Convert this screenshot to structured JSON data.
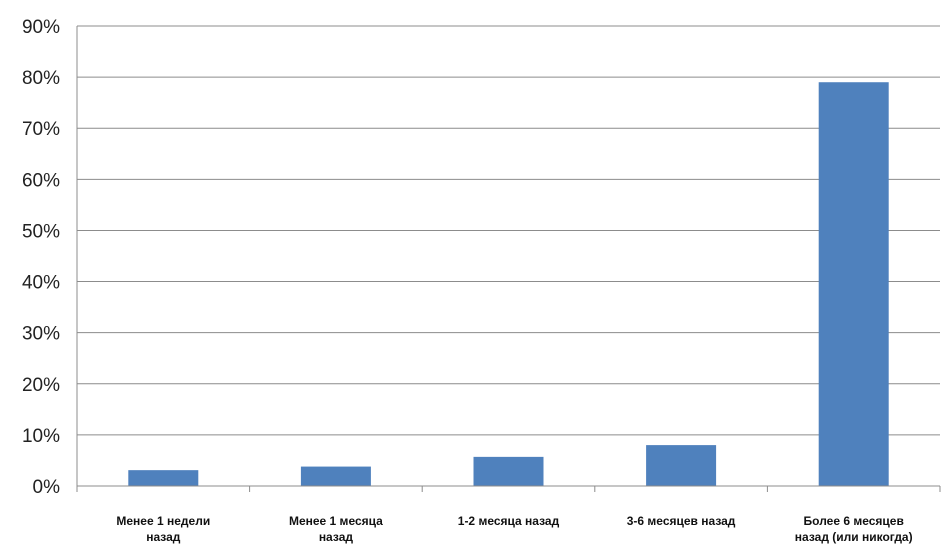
{
  "chart_data": {
    "type": "bar",
    "title": "",
    "xlabel": "",
    "ylabel": "",
    "ylim": [
      0,
      90
    ],
    "y_ticks": [
      "0%",
      "10%",
      "20%",
      "30%",
      "40%",
      "50%",
      "60%",
      "70%",
      "80%",
      "90%"
    ],
    "grid": true,
    "legend": "none",
    "categories": [
      [
        "Менее 1 недели",
        "назад"
      ],
      [
        "Менее 1 месяца",
        "назад"
      ],
      [
        "1-2 месяца назад"
      ],
      [
        "3-6 месяцев назад"
      ],
      [
        "Более 6 месяцев",
        "назад (или никогда)"
      ]
    ],
    "values": [
      3.1,
      3.8,
      5.7,
      8.0,
      79.0
    ],
    "colors": {
      "bar": "#4F81BD",
      "grid": "#8c8c8c",
      "axis": "#8c8c8c"
    }
  }
}
